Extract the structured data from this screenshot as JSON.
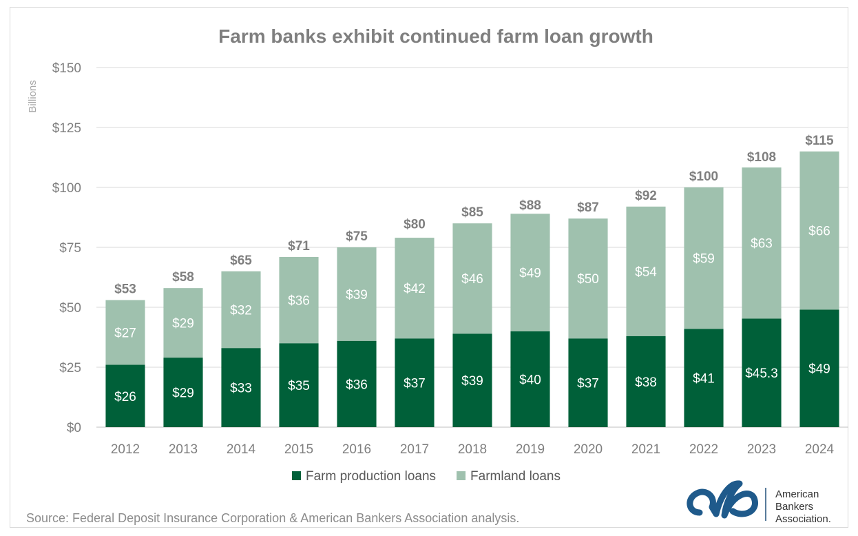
{
  "chart_data": {
    "type": "bar",
    "stacked": true,
    "title": "Farm banks exhibit continued farm loan growth",
    "unit_label": "Billions",
    "ylim": [
      0,
      150
    ],
    "yticks": [
      0,
      25,
      50,
      75,
      100,
      125,
      150
    ],
    "ytick_labels": [
      "$0",
      "$25",
      "$50",
      "$75",
      "$100",
      "$125",
      "$150"
    ],
    "categories": [
      "2012",
      "2013",
      "2014",
      "2015",
      "2016",
      "2017",
      "2018",
      "2019",
      "2020",
      "2021",
      "2022",
      "2023",
      "2024"
    ],
    "series": [
      {
        "name": "Farm production loans",
        "color": "#006039",
        "values": [
          26,
          29,
          33,
          35,
          36,
          37,
          39,
          40,
          37,
          38,
          41,
          45.3,
          49
        ],
        "labels": [
          "$26",
          "$29",
          "$33",
          "$35",
          "$36",
          "$37",
          "$39",
          "$40",
          "$37",
          "$38",
          "$41",
          "$45.3",
          "$49"
        ]
      },
      {
        "name": "Farmland loans",
        "color": "#9fc1ae",
        "values": [
          27,
          29,
          32,
          36,
          39,
          42,
          46,
          49,
          50,
          54,
          59,
          63,
          66
        ],
        "labels": [
          "$27",
          "$29",
          "$32",
          "$36",
          "$39",
          "$42",
          "$46",
          "$49",
          "$50",
          "$54",
          "$59",
          "$63",
          "$66"
        ]
      }
    ],
    "totals": [
      53,
      58,
      65,
      71,
      75,
      80,
      85,
      88,
      87,
      92,
      100,
      108,
      115
    ],
    "total_labels": [
      "$53",
      "$58",
      "$65",
      "$71",
      "$75",
      "$80",
      "$85",
      "$88",
      "$87",
      "$92",
      "$100",
      "$108",
      "$115"
    ],
    "grid": true,
    "legend_position": "bottom"
  },
  "source": "Source: Federal Deposit Insurance Corporation & American Bankers Association analysis.",
  "logo": {
    "line1": "American",
    "line2": "Bankers",
    "line3": "Association.",
    "color": "#1f4e79"
  }
}
